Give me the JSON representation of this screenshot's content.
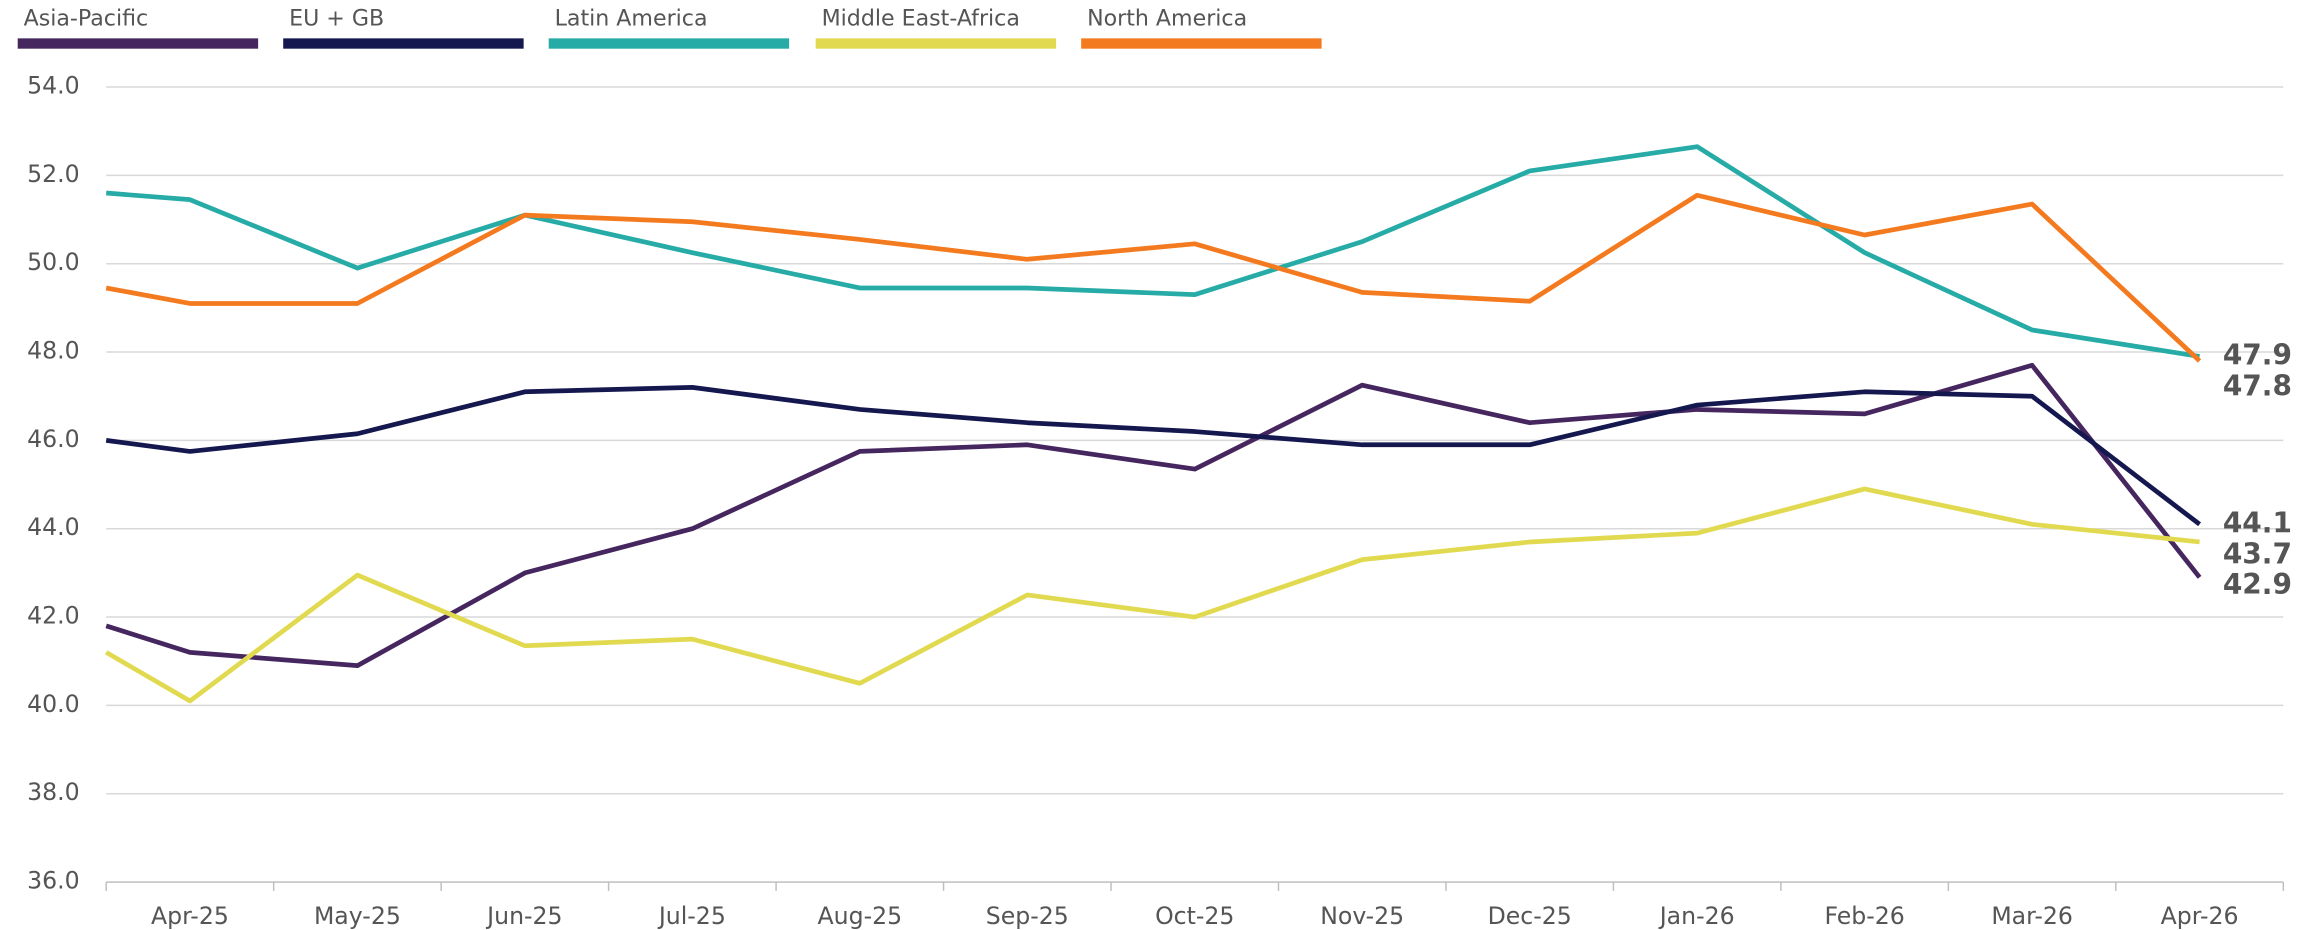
{
  "chart_data": {
    "type": "line",
    "categories": [
      null,
      "Apr-25",
      "May-25",
      "Jun-25",
      "Jul-25",
      "Aug-25",
      "Sep-25",
      "Oct-25",
      "Nov-25",
      "Dec-25",
      "Jan-26",
      "Feb-26",
      "Mar-26",
      "Apr-26"
    ],
    "series": [
      {
        "name": "Asia-Pacific",
        "color": "#45265f",
        "values": [
          41.8,
          41.2,
          40.9,
          43.0,
          44.0,
          45.75,
          45.9,
          45.35,
          47.25,
          46.4,
          46.7,
          46.6,
          47.7,
          42.9
        ]
      },
      {
        "name": "EU + GB",
        "color": "#15174f",
        "values": [
          46.0,
          45.75,
          46.15,
          47.1,
          47.2,
          46.7,
          46.4,
          46.2,
          45.9,
          45.9,
          46.8,
          47.1,
          47.0,
          44.1
        ]
      },
      {
        "name": "Latin America",
        "color": "#26aba6",
        "values": [
          51.6,
          51.45,
          49.9,
          51.1,
          50.25,
          49.45,
          49.45,
          49.3,
          50.5,
          52.1,
          52.65,
          50.25,
          48.5,
          47.9
        ]
      },
      {
        "name": "Middle East-Africa",
        "color": "#e1da50",
        "values": [
          41.2,
          40.1,
          42.95,
          41.35,
          41.5,
          40.5,
          42.5,
          42.0,
          43.3,
          43.7,
          43.9,
          44.9,
          44.1,
          43.7
        ]
      },
      {
        "name": "North America",
        "color": "#f47a1f",
        "values": [
          49.45,
          49.1,
          49.1,
          51.1,
          50.95,
          50.55,
          50.1,
          50.45,
          49.35,
          49.15,
          51.55,
          50.65,
          51.35,
          47.8
        ]
      }
    ],
    "ylim": [
      36,
      54
    ],
    "yticks": [
      {
        "value": 36,
        "label": "36.0"
      },
      {
        "value": 38,
        "label": "38.0"
      },
      {
        "value": 40,
        "label": "40.0"
      },
      {
        "value": 42,
        "label": "42.0"
      },
      {
        "value": 44,
        "label": "44.0"
      },
      {
        "value": 46,
        "label": "46.0"
      },
      {
        "value": 48,
        "label": "48.0"
      },
      {
        "value": 50,
        "label": "50.0"
      },
      {
        "value": 52,
        "label": "52.0"
      },
      {
        "value": 54,
        "label": "54.0"
      }
    ],
    "grid": true,
    "legend": "top"
  }
}
